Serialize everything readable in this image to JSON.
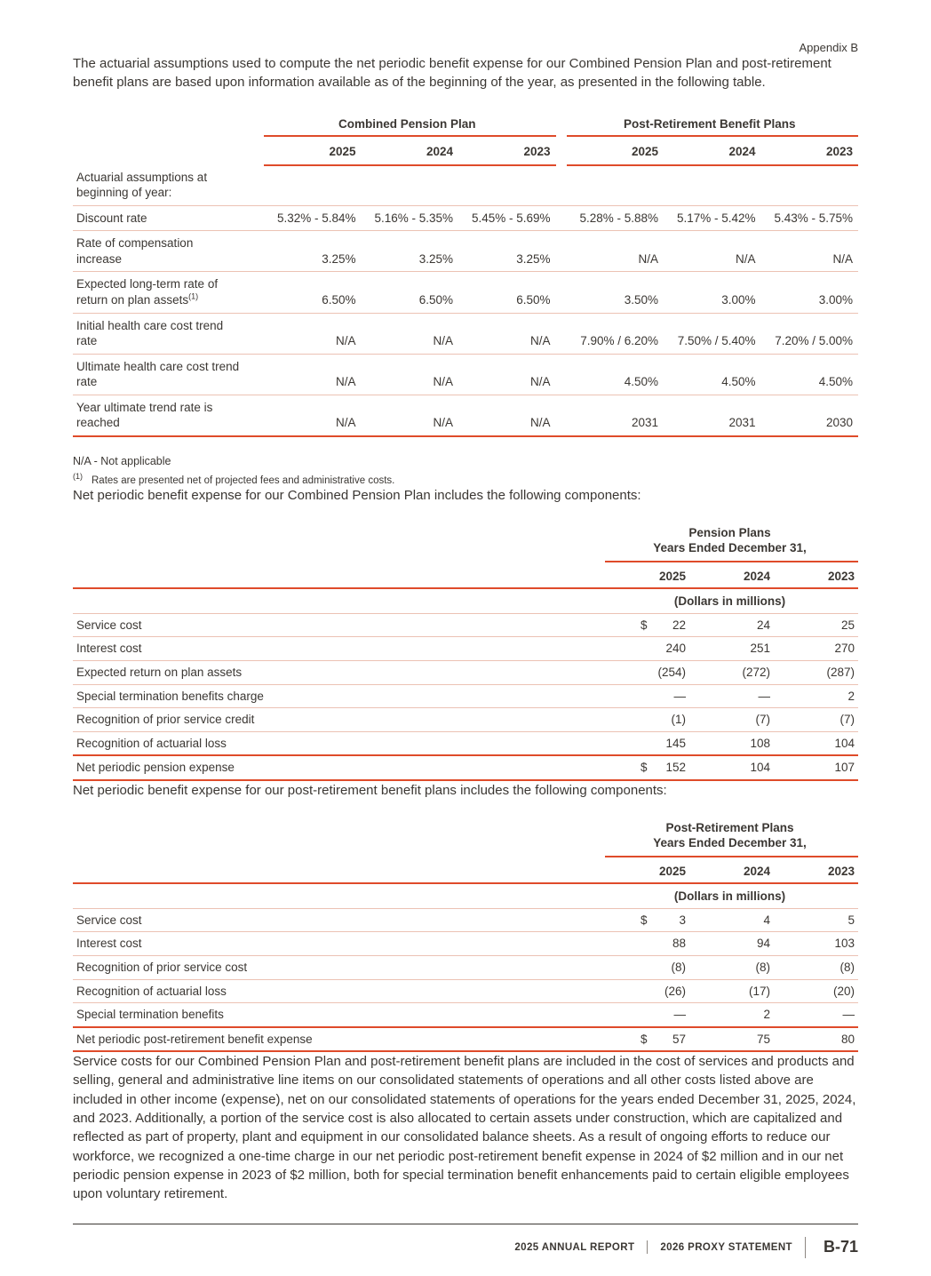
{
  "page": {
    "corner_label": "Appendix B",
    "intro_paragraph": "The actuarial assumptions used to compute the net periodic benefit expense for our Combined Pension Plan and post-retirement benefit plans are based upon information available as of the beginning of the year, as presented in the following table.",
    "na_footnote": "N/A - Not applicable",
    "footnote1_marker": "(1)",
    "footnote1_text": "Rates are presented net of projected fees and administrative costs.",
    "pension_intro": "Net periodic benefit expense for our Combined Pension Plan includes the following components:",
    "postret_intro": "Net periodic benefit expense for our post-retirement benefit plans includes the following components:",
    "closing_paragraph": "Service costs for our Combined Pension Plan and post-retirement benefit plans are included in the cost of services and products and selling, general and administrative line items on our consolidated statements of operations and all other costs listed above are included in other income (expense), net on our consolidated statements of operations for the years ended December 31, 2025, 2024, and 2023. Additionally, a portion of the service cost is also allocated to certain assets under construction, which are capitalized and reflected as part of property, plant and equipment in our consolidated balance sheets. As a result of ongoing efforts to reduce our workforce, we recognized a one-time charge in our net periodic post-retirement benefit expense in 2024 of $2 million and in our net periodic pension expense in 2023 of $2 million, both for special termination benefit enhancements paid to certain eligible employees upon voluntary retirement.",
    "footer": {
      "annual_report": "2025 ANNUAL REPORT",
      "proxy_statement": "2026 PROXY STATEMENT",
      "page_number": "B-71"
    }
  },
  "colors": {
    "accent_rule": "#df4b2a",
    "light_rule": "#ecc2b4",
    "text": "#3b3733"
  },
  "assumptions_table": {
    "groups": [
      {
        "label": "Combined Pension Plan"
      },
      {
        "label": "Post-Retirement Benefit Plans"
      }
    ],
    "years": [
      "2025",
      "2024",
      "2023",
      "2025",
      "2024",
      "2023"
    ],
    "section_header": "Actuarial assumptions at beginning of year:",
    "rows": [
      {
        "label": "Discount rate",
        "sup": "",
        "values": [
          "5.32% - 5.84%",
          "5.16% - 5.35%",
          "5.45% - 5.69%",
          "5.28% - 5.88%",
          "5.17% - 5.42%",
          "5.43% - 5.75%"
        ]
      },
      {
        "label": "Rate of compensation increase",
        "sup": "",
        "values": [
          "3.25%",
          "3.25%",
          "3.25%",
          "N/A",
          "N/A",
          "N/A"
        ]
      },
      {
        "label": "Expected long-term rate of return on plan assets",
        "sup": "(1)",
        "values": [
          "6.50%",
          "6.50%",
          "6.50%",
          "3.50%",
          "3.00%",
          "3.00%"
        ]
      },
      {
        "label": "Initial health care cost trend rate",
        "sup": "",
        "values": [
          "N/A",
          "N/A",
          "N/A",
          "7.90% / 6.20%",
          "7.50% / 5.40%",
          "7.20% / 5.00%"
        ]
      },
      {
        "label": "Ultimate health care cost trend rate",
        "sup": "",
        "values": [
          "N/A",
          "N/A",
          "N/A",
          "4.50%",
          "4.50%",
          "4.50%"
        ]
      },
      {
        "label": "Year ultimate trend rate is reached",
        "sup": "",
        "values": [
          "N/A",
          "N/A",
          "N/A",
          "2031",
          "2031",
          "2030"
        ]
      }
    ]
  },
  "pension_table": {
    "title_line1": "Pension Plans",
    "title_line2": "Years Ended December 31,",
    "years": [
      "2025",
      "2024",
      "2023"
    ],
    "units": "(Dollars in millions)",
    "rows": [
      {
        "label": "Service cost",
        "currency": "$",
        "values": [
          "22",
          "24",
          "25"
        ]
      },
      {
        "label": "Interest cost",
        "currency": "",
        "values": [
          "240",
          "251",
          "270"
        ]
      },
      {
        "label": "Expected return on plan assets",
        "currency": "",
        "values": [
          "(254)",
          "(272)",
          "(287)"
        ]
      },
      {
        "label": "Special termination benefits charge",
        "currency": "",
        "values": [
          "—",
          "—",
          "2"
        ]
      },
      {
        "label": "Recognition of prior service credit",
        "currency": "",
        "values": [
          "(1)",
          "(7)",
          "(7)"
        ]
      },
      {
        "label": "Recognition of actuarial loss",
        "currency": "",
        "values": [
          "145",
          "108",
          "104"
        ]
      }
    ],
    "total_row": {
      "label": "Net periodic pension expense",
      "currency": "$",
      "values": [
        "152",
        "104",
        "107"
      ]
    }
  },
  "postretirement_table": {
    "title_line1": "Post-Retirement Plans",
    "title_line2": "Years Ended December 31,",
    "years": [
      "2025",
      "2024",
      "2023"
    ],
    "units": "(Dollars in millions)",
    "rows": [
      {
        "label": "Service cost",
        "currency": "$",
        "values": [
          "3",
          "4",
          "5"
        ]
      },
      {
        "label": "Interest cost",
        "currency": "",
        "values": [
          "88",
          "94",
          "103"
        ]
      },
      {
        "label": "Recognition of prior service cost",
        "currency": "",
        "values": [
          "(8)",
          "(8)",
          "(8)"
        ]
      },
      {
        "label": "Recognition of actuarial loss",
        "currency": "",
        "values": [
          "(26)",
          "(17)",
          "(20)"
        ]
      },
      {
        "label": "Special termination benefits",
        "currency": "",
        "values": [
          "—",
          "2",
          "—"
        ]
      }
    ],
    "total_row": {
      "label": "Net periodic post-retirement benefit expense",
      "currency": "$",
      "values": [
        "57",
        "75",
        "80"
      ]
    }
  }
}
